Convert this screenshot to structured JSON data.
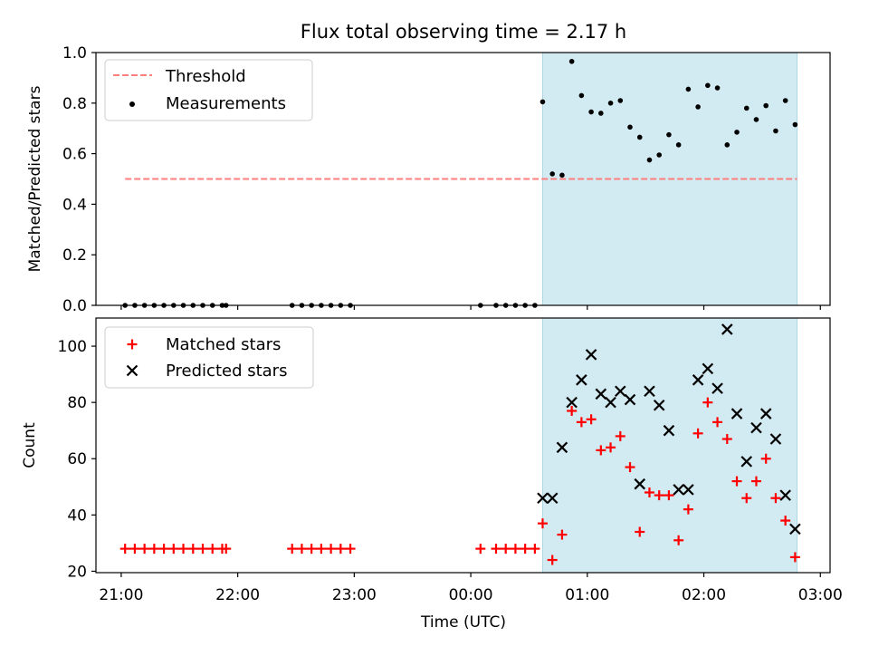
{
  "title": "Flux total observing time = 2.17 h",
  "colors": {
    "threshold": "#ff7f7f",
    "measurement": "#000000",
    "matched": "#ff0000",
    "predicted": "#000000",
    "span": "#add8e6"
  },
  "chart_data": [
    {
      "type": "scatter",
      "panel": "top",
      "ylabel": "Matched/Predicted stars",
      "ylim": [
        0,
        1.0
      ],
      "yticks": [
        "0.0",
        "0.2",
        "0.4",
        "0.6",
        "0.8",
        "1.0"
      ],
      "xlim": [
        "20:47",
        "03:05"
      ],
      "shaded_span": [
        "00:37",
        "02:48"
      ],
      "legend": {
        "placement": "top-left",
        "threshold_label": "Threshold",
        "measurement_label": "Measurements"
      },
      "threshold": {
        "value": 0.5,
        "x_start": "21:02",
        "x_end": "02:48",
        "style": "dashed"
      },
      "series": [
        {
          "name": "Measurements",
          "points": [
            [
              "21:02",
              0.0
            ],
            [
              "21:07",
              0.0
            ],
            [
              "21:12",
              0.0
            ],
            [
              "21:17",
              0.0
            ],
            [
              "21:22",
              0.0
            ],
            [
              "21:27",
              0.0
            ],
            [
              "21:32",
              0.0
            ],
            [
              "21:37",
              0.0
            ],
            [
              "21:42",
              0.0
            ],
            [
              "21:47",
              0.0
            ],
            [
              "21:52",
              0.0
            ],
            [
              "21:54",
              0.0
            ],
            [
              "22:28",
              0.0
            ],
            [
              "22:33",
              0.0
            ],
            [
              "22:38",
              0.0
            ],
            [
              "22:43",
              0.0
            ],
            [
              "22:48",
              0.0
            ],
            [
              "22:53",
              0.0
            ],
            [
              "22:58",
              0.0
            ],
            [
              "00:05",
              0.0
            ],
            [
              "00:13",
              0.0
            ],
            [
              "00:18",
              0.0
            ],
            [
              "00:23",
              0.0
            ],
            [
              "00:28",
              0.0
            ],
            [
              "00:33",
              0.0
            ],
            [
              "00:37",
              0.805
            ],
            [
              "00:42",
              0.52
            ],
            [
              "00:47",
              0.515
            ],
            [
              "00:52",
              0.965
            ],
            [
              "00:57",
              0.83
            ],
            [
              "01:02",
              0.765
            ],
            [
              "01:07",
              0.76
            ],
            [
              "01:12",
              0.8
            ],
            [
              "01:17",
              0.81
            ],
            [
              "01:22",
              0.705
            ],
            [
              "01:27",
              0.665
            ],
            [
              "01:32",
              0.575
            ],
            [
              "01:37",
              0.595
            ],
            [
              "01:42",
              0.675
            ],
            [
              "01:47",
              0.635
            ],
            [
              "01:52",
              0.855
            ],
            [
              "01:57",
              0.785
            ],
            [
              "02:02",
              0.87
            ],
            [
              "02:07",
              0.86
            ],
            [
              "02:12",
              0.635
            ],
            [
              "02:17",
              0.685
            ],
            [
              "02:22",
              0.78
            ],
            [
              "02:27",
              0.735
            ],
            [
              "02:32",
              0.79
            ],
            [
              "02:37",
              0.69
            ],
            [
              "02:42",
              0.81
            ],
            [
              "02:47",
              0.715
            ]
          ]
        }
      ]
    },
    {
      "type": "scatter",
      "panel": "bottom",
      "ylabel": "Count",
      "xlabel": "Time (UTC)",
      "ylim": [
        19.5,
        110
      ],
      "yticks": [
        "20",
        "40",
        "60",
        "80",
        "100"
      ],
      "xlim": [
        "20:47",
        "03:05"
      ],
      "xticks": [
        "21:00",
        "22:00",
        "23:00",
        "00:00",
        "01:00",
        "02:00",
        "03:00"
      ],
      "shaded_span": [
        "00:37",
        "02:48"
      ],
      "legend": {
        "placement": "top-left"
      },
      "series": [
        {
          "name": "Matched stars",
          "marker": "plus",
          "points": [
            [
              "21:02",
              28
            ],
            [
              "21:07",
              28
            ],
            [
              "21:12",
              28
            ],
            [
              "21:17",
              28
            ],
            [
              "21:22",
              28
            ],
            [
              "21:27",
              28
            ],
            [
              "21:32",
              28
            ],
            [
              "21:37",
              28
            ],
            [
              "21:42",
              28
            ],
            [
              "21:47",
              28
            ],
            [
              "21:52",
              28
            ],
            [
              "21:54",
              28
            ],
            [
              "22:28",
              28
            ],
            [
              "22:33",
              28
            ],
            [
              "22:38",
              28
            ],
            [
              "22:43",
              28
            ],
            [
              "22:48",
              28
            ],
            [
              "22:53",
              28
            ],
            [
              "22:58",
              28
            ],
            [
              "00:05",
              28
            ],
            [
              "00:13",
              28
            ],
            [
              "00:18",
              28
            ],
            [
              "00:23",
              28
            ],
            [
              "00:28",
              28
            ],
            [
              "00:33",
              28
            ],
            [
              "00:37",
              37
            ],
            [
              "00:42",
              24
            ],
            [
              "00:47",
              33
            ],
            [
              "00:52",
              77
            ],
            [
              "00:57",
              73
            ],
            [
              "01:02",
              74
            ],
            [
              "01:07",
              63
            ],
            [
              "01:12",
              64
            ],
            [
              "01:17",
              68
            ],
            [
              "01:22",
              57
            ],
            [
              "01:27",
              34
            ],
            [
              "01:32",
              48
            ],
            [
              "01:37",
              47
            ],
            [
              "01:42",
              47
            ],
            [
              "01:47",
              31
            ],
            [
              "01:52",
              42
            ],
            [
              "01:57",
              69
            ],
            [
              "02:02",
              80
            ],
            [
              "02:07",
              73
            ],
            [
              "02:12",
              67
            ],
            [
              "02:17",
              52
            ],
            [
              "02:22",
              46
            ],
            [
              "02:27",
              52
            ],
            [
              "02:32",
              60
            ],
            [
              "02:37",
              46
            ],
            [
              "02:42",
              38
            ],
            [
              "02:47",
              25
            ]
          ]
        },
        {
          "name": "Predicted stars",
          "marker": "x",
          "points": [
            [
              "00:37",
              46
            ],
            [
              "00:42",
              46
            ],
            [
              "00:47",
              64
            ],
            [
              "00:52",
              80
            ],
            [
              "00:57",
              88
            ],
            [
              "01:02",
              97
            ],
            [
              "01:07",
              83
            ],
            [
              "01:12",
              80
            ],
            [
              "01:17",
              84
            ],
            [
              "01:22",
              81
            ],
            [
              "01:27",
              51
            ],
            [
              "01:32",
              84
            ],
            [
              "01:37",
              79
            ],
            [
              "01:42",
              70
            ],
            [
              "01:47",
              49
            ],
            [
              "01:52",
              49
            ],
            [
              "01:57",
              88
            ],
            [
              "02:02",
              92
            ],
            [
              "02:07",
              85
            ],
            [
              "02:12",
              106
            ],
            [
              "02:17",
              76
            ],
            [
              "02:22",
              59
            ],
            [
              "02:27",
              71
            ],
            [
              "02:32",
              76
            ],
            [
              "02:37",
              67
            ],
            [
              "02:42",
              47
            ],
            [
              "02:47",
              35
            ]
          ]
        }
      ]
    }
  ]
}
